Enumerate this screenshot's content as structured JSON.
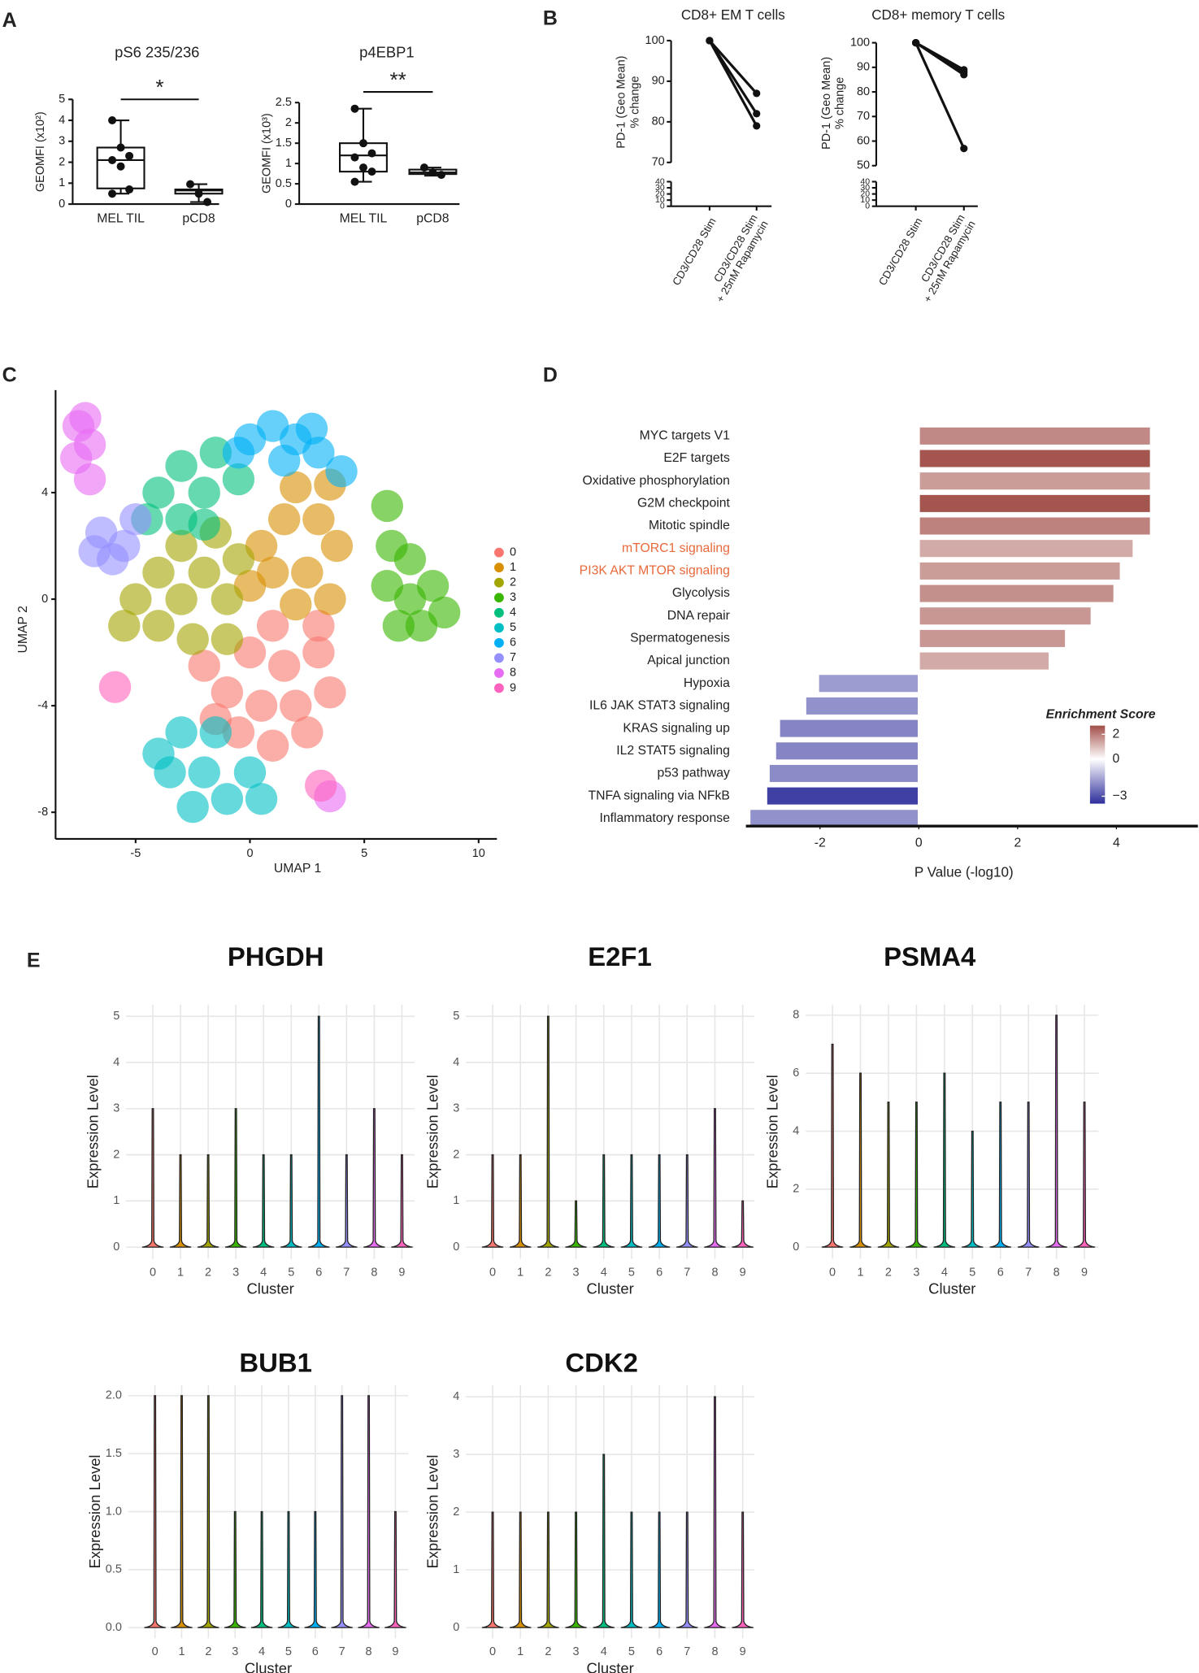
{
  "panel_labels": [
    "A",
    "B",
    "C",
    "D",
    "E"
  ],
  "chart_data": [
    {
      "type": "box",
      "title": "pS6 235/236",
      "ylabel": "GEOMFI (x10²)",
      "categories": [
        "MEL TIL",
        "pCD8"
      ],
      "boxes": [
        {
          "min": 0.5,
          "q1": 0.75,
          "median": 2.1,
          "q3": 2.7,
          "max": 4.0
        },
        {
          "min": 0.1,
          "q1": 0.5,
          "median": 0.65,
          "q3": 0.7,
          "max": 0.95
        }
      ],
      "points": [
        [
          4.0,
          2.7,
          2.3,
          2.1,
          1.8,
          0.7,
          0.5
        ],
        [
          0.95,
          0.5,
          0.1
        ]
      ],
      "annotation": "*",
      "ylim": [
        0,
        5
      ],
      "yticks": [
        0,
        1,
        2,
        3,
        4,
        5
      ]
    },
    {
      "type": "box",
      "title": "p4EBP1",
      "ylabel": "GEOMFI (x10³)",
      "categories": [
        "MEL TIL",
        "pCD8"
      ],
      "boxes": [
        {
          "min": 0.55,
          "q1": 0.8,
          "median": 1.2,
          "q3": 1.5,
          "max": 2.35
        },
        {
          "min": 0.7,
          "q1": 0.74,
          "median": 0.78,
          "q3": 0.85,
          "max": 0.9
        }
      ],
      "points": [
        [
          2.35,
          1.5,
          1.25,
          1.15,
          0.9,
          0.8,
          0.55
        ],
        [
          0.9,
          0.78,
          0.72
        ]
      ],
      "annotation": "**",
      "ylim": [
        0,
        2.5
      ],
      "yticks": [
        0,
        0.5,
        1,
        1.5,
        2,
        2.5
      ]
    },
    {
      "type": "line",
      "title": "CD8+ EM T cells",
      "ylabel": "PD-1 (Geo Mean)\n% change",
      "categories": [
        "CD3/CD28 Stim",
        "CD3/CD28 Stim\n+ 25nM Rapamycin"
      ],
      "color": "#111111",
      "series": [
        {
          "values": [
            100,
            87
          ]
        },
        {
          "values": [
            100,
            82
          ]
        },
        {
          "values": [
            100,
            79
          ]
        }
      ],
      "ylim": [
        0,
        100
      ],
      "ybreak": [
        40,
        70
      ],
      "yticks": [
        0,
        10,
        20,
        30,
        40,
        70,
        80,
        90,
        100
      ]
    },
    {
      "type": "line",
      "title": "CD8+ memory T cells",
      "ylabel": "PD-1 (Geo Mean)\n% change",
      "categories": [
        "CD3/CD28 Stim",
        "CD3/CD28 Stim\n+ 25nM Rapamycin"
      ],
      "color": "#111111",
      "series": [
        {
          "values": [
            100,
            89
          ]
        },
        {
          "values": [
            100,
            88
          ]
        },
        {
          "values": [
            100,
            87
          ]
        },
        {
          "values": [
            100,
            57
          ]
        }
      ],
      "ylim": [
        0,
        100
      ],
      "ybreak": [
        40,
        50
      ],
      "yticks": [
        0,
        10,
        20,
        30,
        40,
        50,
        60,
        70,
        80,
        90,
        100
      ]
    },
    {
      "type": "scatter",
      "xlabel": "UMAP 1",
      "ylabel": "UMAP 2",
      "xlim": [
        -8.5,
        10.8
      ],
      "ylim": [
        -9,
        7.85
      ],
      "xticks": [
        -5,
        0,
        5,
        10
      ],
      "yticks": [
        -8,
        -4,
        0,
        4
      ],
      "series": [
        {
          "name": "0",
          "color": "#F8766D",
          "x": [
            0,
            1.5,
            3,
            -1,
            0.5,
            2,
            3.5,
            -2,
            -0.5,
            1,
            2.5,
            1,
            -1.5,
            3
          ],
          "y": [
            -2,
            -2.5,
            -2,
            -3.5,
            -4,
            -4,
            -3.5,
            -2.5,
            -5,
            -5.5,
            -5,
            -1,
            -4.5,
            -1
          ]
        },
        {
          "name": "1",
          "color": "#D89000",
          "x": [
            1,
            2.5,
            3.5,
            1.5,
            3,
            0.5,
            2,
            3.8,
            0,
            2,
            3.5
          ],
          "y": [
            1,
            1,
            0,
            3,
            3,
            2,
            4.2,
            2,
            0.5,
            -0.2,
            4.3
          ]
        },
        {
          "name": "2",
          "color": "#A3A500",
          "x": [
            -5,
            -4,
            -3,
            -2,
            -1,
            -4,
            -2.5,
            -1,
            -5.5,
            -3,
            -1.5,
            -0.5
          ],
          "y": [
            0,
            1,
            0,
            1,
            0,
            -1,
            -1.5,
            -1.5,
            -1,
            2,
            2.5,
            1.5
          ]
        },
        {
          "name": "3",
          "color": "#39B600",
          "x": [
            6,
            7,
            8,
            7.5,
            6.5,
            8.5,
            6.2,
            6,
            7
          ],
          "y": [
            0.5,
            0,
            0.5,
            -1,
            -1,
            -0.5,
            2,
            3.5,
            1.5
          ]
        },
        {
          "name": "4",
          "color": "#00BF7D",
          "x": [
            -4,
            -3,
            -2,
            -3,
            -1.5,
            -4.5,
            -2,
            -0.5
          ],
          "y": [
            4,
            5,
            4,
            3,
            5.5,
            3,
            2.8,
            4.5
          ]
        },
        {
          "name": "5",
          "color": "#00BFC4",
          "x": [
            -3,
            -2,
            -1,
            -3.5,
            0,
            -2.5,
            -1.5,
            0.5,
            -4
          ],
          "y": [
            -5,
            -6.5,
            -7.5,
            -6.5,
            -6.5,
            -7.8,
            -5,
            -7.5,
            -5.8
          ]
        },
        {
          "name": "6",
          "color": "#00B0F6",
          "x": [
            0,
            1,
            2,
            3,
            -0.5,
            1.5,
            2.7,
            4
          ],
          "y": [
            6,
            6.5,
            6,
            5.5,
            5.5,
            5.2,
            6.4,
            4.8
          ]
        },
        {
          "name": "7",
          "color": "#9590FF",
          "x": [
            -6.5,
            -5.5,
            -6,
            -5,
            -6.8
          ],
          "y": [
            2.5,
            2,
            1.5,
            3,
            1.8
          ]
        },
        {
          "name": "8",
          "color": "#E76BF3",
          "x": [
            -7.5,
            -7,
            -7.2,
            -7.6,
            -7,
            3.5
          ],
          "y": [
            6.5,
            5.8,
            6.8,
            5.3,
            4.5,
            -7.4
          ]
        },
        {
          "name": "9",
          "color": "#FF62BC",
          "x": [
            -5.9,
            3.1
          ],
          "y": [
            -3.3,
            -7
          ]
        }
      ]
    },
    {
      "type": "barh",
      "xlabel": "P Value (-log10)",
      "categories": [
        "MYC targets V1",
        "E2F targets",
        "Oxidative phosphorylation",
        "G2M checkpoint",
        "Mitotic spindle",
        "mTORC1 signaling",
        "PI3K AKT MTOR signaling",
        "Glycolysis",
        "DNA repair",
        "Spermatogenesis",
        "Apical junction",
        "Hypoxia",
        "IL6 JAK STAT3 signaling",
        "KRAS signaling up",
        "IL2 STAT5 signaling",
        "p53 pathway",
        "TNFA signaling via NFkB",
        "Inflammatory response"
      ],
      "values": [
        4.7,
        4.7,
        4.7,
        4.7,
        4.7,
        4.35,
        4.09,
        3.96,
        3.5,
        2.98,
        2.65,
        -2.04,
        -2.3,
        -2.83,
        -2.91,
        -3.04,
        -3.09,
        -3.43
      ],
      "enrichment": [
        1.8,
        2.6,
        1.5,
        2.6,
        1.9,
        1.3,
        1.5,
        1.7,
        1.6,
        1.6,
        1.3,
        -1.7,
        -1.9,
        -2.1,
        -2.1,
        -2.0,
        -3.3,
        -1.9
      ],
      "highlight": [
        5,
        6
      ],
      "highlight_color": "#e8683a",
      "xlim": [
        -3.5,
        5.65
      ],
      "xticks": [
        -2,
        0,
        2,
        4
      ],
      "colorbar": {
        "title": "Enrichment Score",
        "lim": [
          -3.6,
          2.7
        ],
        "mid": 0,
        "colors": [
          "#2e2e9c",
          "#ffffff",
          "#a24e48"
        ],
        "ticks": [
          2,
          0,
          {
            "value": -3,
            "label": "−3"
          }
        ]
      }
    },
    {
      "type": "violin",
      "title": "PHGDH",
      "xlabel": "Cluster",
      "ylabel": "Expression Level",
      "categories": [
        "0",
        "1",
        "2",
        "3",
        "4",
        "5",
        "6",
        "7",
        "8",
        "9"
      ],
      "values": [
        3,
        2,
        2,
        3,
        2,
        2,
        5,
        2,
        3,
        2
      ],
      "colors": [
        "#F8766D",
        "#D89000",
        "#A3A500",
        "#39B600",
        "#00BF7D",
        "#00BFC4",
        "#00B0F6",
        "#9590FF",
        "#E76BF3",
        "#FF62BC"
      ],
      "ylim": [
        0,
        5
      ],
      "yticks": [
        0,
        1,
        2,
        3,
        4,
        5
      ]
    },
    {
      "type": "violin",
      "title": "E2F1",
      "xlabel": "Cluster",
      "ylabel": "Expression Level",
      "categories": [
        "0",
        "1",
        "2",
        "3",
        "4",
        "5",
        "6",
        "7",
        "8",
        "9"
      ],
      "values": [
        2,
        2,
        5,
        1,
        2,
        2,
        2,
        2,
        3,
        1
      ],
      "colors": [
        "#F8766D",
        "#D89000",
        "#A3A500",
        "#39B600",
        "#00BF7D",
        "#00BFC4",
        "#00B0F6",
        "#9590FF",
        "#E76BF3",
        "#FF62BC"
      ],
      "ylim": [
        0,
        5
      ],
      "yticks": [
        0,
        1,
        2,
        3,
        4,
        5
      ]
    },
    {
      "type": "violin",
      "title": "PSMA4",
      "xlabel": "Cluster",
      "ylabel": "Expression Level",
      "categories": [
        "0",
        "1",
        "2",
        "3",
        "4",
        "5",
        "6",
        "7",
        "8",
        "9"
      ],
      "values": [
        7,
        6,
        5,
        5,
        6,
        4,
        5,
        5,
        8,
        5
      ],
      "colors": [
        "#F8766D",
        "#D89000",
        "#A3A500",
        "#39B600",
        "#00BF7D",
        "#00BFC4",
        "#00B0F6",
        "#9590FF",
        "#E76BF3",
        "#FF62BC"
      ],
      "ylim": [
        0,
        8
      ],
      "yticks": [
        0,
        2,
        4,
        6,
        8
      ]
    },
    {
      "type": "violin",
      "title": "BUB1",
      "xlabel": "Cluster",
      "ylabel": "Expression Level",
      "categories": [
        "0",
        "1",
        "2",
        "3",
        "4",
        "5",
        "6",
        "7",
        "8",
        "9"
      ],
      "values": [
        2,
        2,
        2,
        1,
        1,
        1,
        1,
        2,
        2,
        1
      ],
      "colors": [
        "#F8766D",
        "#D89000",
        "#A3A500",
        "#39B600",
        "#00BF7D",
        "#00BFC4",
        "#00B0F6",
        "#9590FF",
        "#E76BF3",
        "#FF62BC"
      ],
      "ylim": [
        0,
        2
      ],
      "yticks": [
        {
          "value": 0,
          "label": "0.0"
        },
        0.5,
        {
          "value": 1,
          "label": "1.0"
        },
        1.5,
        {
          "value": 2,
          "label": "2.0"
        }
      ]
    },
    {
      "type": "violin",
      "title": "CDK2",
      "xlabel": "Cluster",
      "ylabel": "Expression Level",
      "categories": [
        "0",
        "1",
        "2",
        "3",
        "4",
        "5",
        "6",
        "7",
        "8",
        "9"
      ],
      "values": [
        2,
        2,
        2,
        2,
        3,
        2,
        2,
        2,
        4,
        2
      ],
      "colors": [
        "#F8766D",
        "#D89000",
        "#A3A500",
        "#39B600",
        "#00BF7D",
        "#00BFC4",
        "#00B0F6",
        "#9590FF",
        "#E76BF3",
        "#FF62BC"
      ],
      "ylim": [
        0,
        4
      ],
      "yticks": [
        0,
        1,
        2,
        3,
        4
      ]
    }
  ]
}
